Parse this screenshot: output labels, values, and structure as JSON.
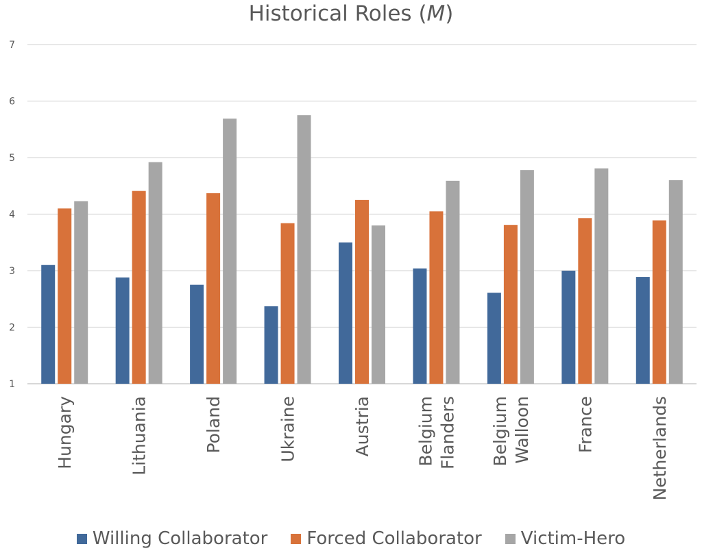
{
  "chart_data": {
    "type": "bar",
    "title": "Historical Roles (",
    "title_symbol": "M",
    "title_suffix": ")",
    "xlabel": "",
    "ylabel": "",
    "ylim": [
      1,
      7
    ],
    "yticks": [
      1,
      2,
      3,
      4,
      5,
      6,
      7
    ],
    "grid": true,
    "legend_position": "bottom",
    "categories": [
      [
        "Hungary"
      ],
      [
        "Lithuania"
      ],
      [
        "Poland"
      ],
      [
        "Ukraine"
      ],
      [
        "Austria"
      ],
      [
        "Belgium",
        "Flanders"
      ],
      [
        "Belgium",
        "Walloon"
      ],
      [
        "France"
      ],
      [
        "Netherlands"
      ]
    ],
    "series": [
      {
        "name": "Willing Collaborator",
        "color": "#41699a",
        "values": [
          3.1,
          2.88,
          2.75,
          2.37,
          3.5,
          3.04,
          2.61,
          3.0,
          2.89
        ]
      },
      {
        "name": "Forced Collaborator",
        "color": "#d8723a",
        "values": [
          4.1,
          4.41,
          4.37,
          3.84,
          4.25,
          4.05,
          3.81,
          3.93,
          3.89
        ]
      },
      {
        "name": "Victim-Hero",
        "color": "#a6a6a6",
        "values": [
          4.23,
          4.92,
          5.69,
          5.75,
          3.8,
          4.59,
          4.78,
          4.81,
          4.6
        ]
      }
    ]
  }
}
